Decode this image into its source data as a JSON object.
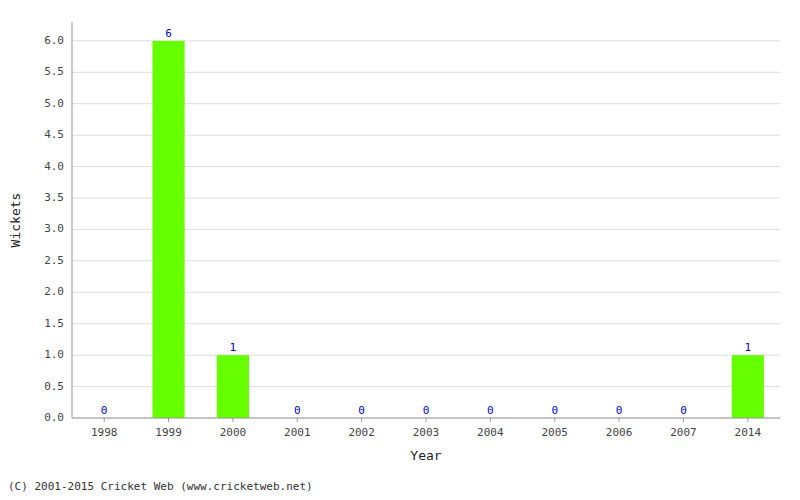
{
  "chart_data": {
    "type": "bar",
    "xlabel": "Year",
    "ylabel": "Wickets",
    "categories": [
      "1998",
      "1999",
      "2000",
      "2001",
      "2002",
      "2003",
      "2004",
      "2005",
      "2006",
      "2007",
      "2014"
    ],
    "values": [
      0,
      6,
      1,
      0,
      0,
      0,
      0,
      0,
      0,
      0,
      1
    ],
    "color": "#66ff00",
    "data_labels": true,
    "ylim": [
      0,
      6.3
    ],
    "yticks": [
      {
        "value": 0,
        "label": "0.0"
      },
      0.5,
      {
        "value": 1,
        "label": "1.0"
      },
      1.5,
      {
        "value": 2,
        "label": "2.0"
      },
      2.5,
      {
        "value": 3,
        "label": "3.0"
      },
      3.5,
      {
        "value": 4,
        "label": "4.0"
      },
      4.5,
      {
        "value": 5,
        "label": "5.0"
      },
      5.5,
      {
        "value": 6,
        "label": "6.0"
      }
    ],
    "grid": true,
    "annotations": [
      "(C) 2001-2015 Cricket Web (www.cricketweb.net)"
    ]
  }
}
